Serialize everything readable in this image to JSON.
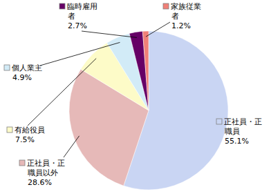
{
  "chart_data": {
    "type": "pie",
    "categories": [
      "正社員・正職員",
      "正社員・正職員以外",
      "有給役員",
      "個人業主",
      "臨時雇用者",
      "家族従業者"
    ],
    "values": [
      55.1,
      28.6,
      7.5,
      4.9,
      2.7,
      1.2
    ],
    "value_labels": [
      "55.1%",
      "28.6%",
      "7.5%",
      "4.9%",
      "2.7%",
      "1.2%"
    ],
    "colors": [
      "#c9d5f3",
      "#e6b9b8",
      "#fdfbc8",
      "#d2ebf7",
      "#660066",
      "#f08078"
    ],
    "data_labels": true
  }
}
